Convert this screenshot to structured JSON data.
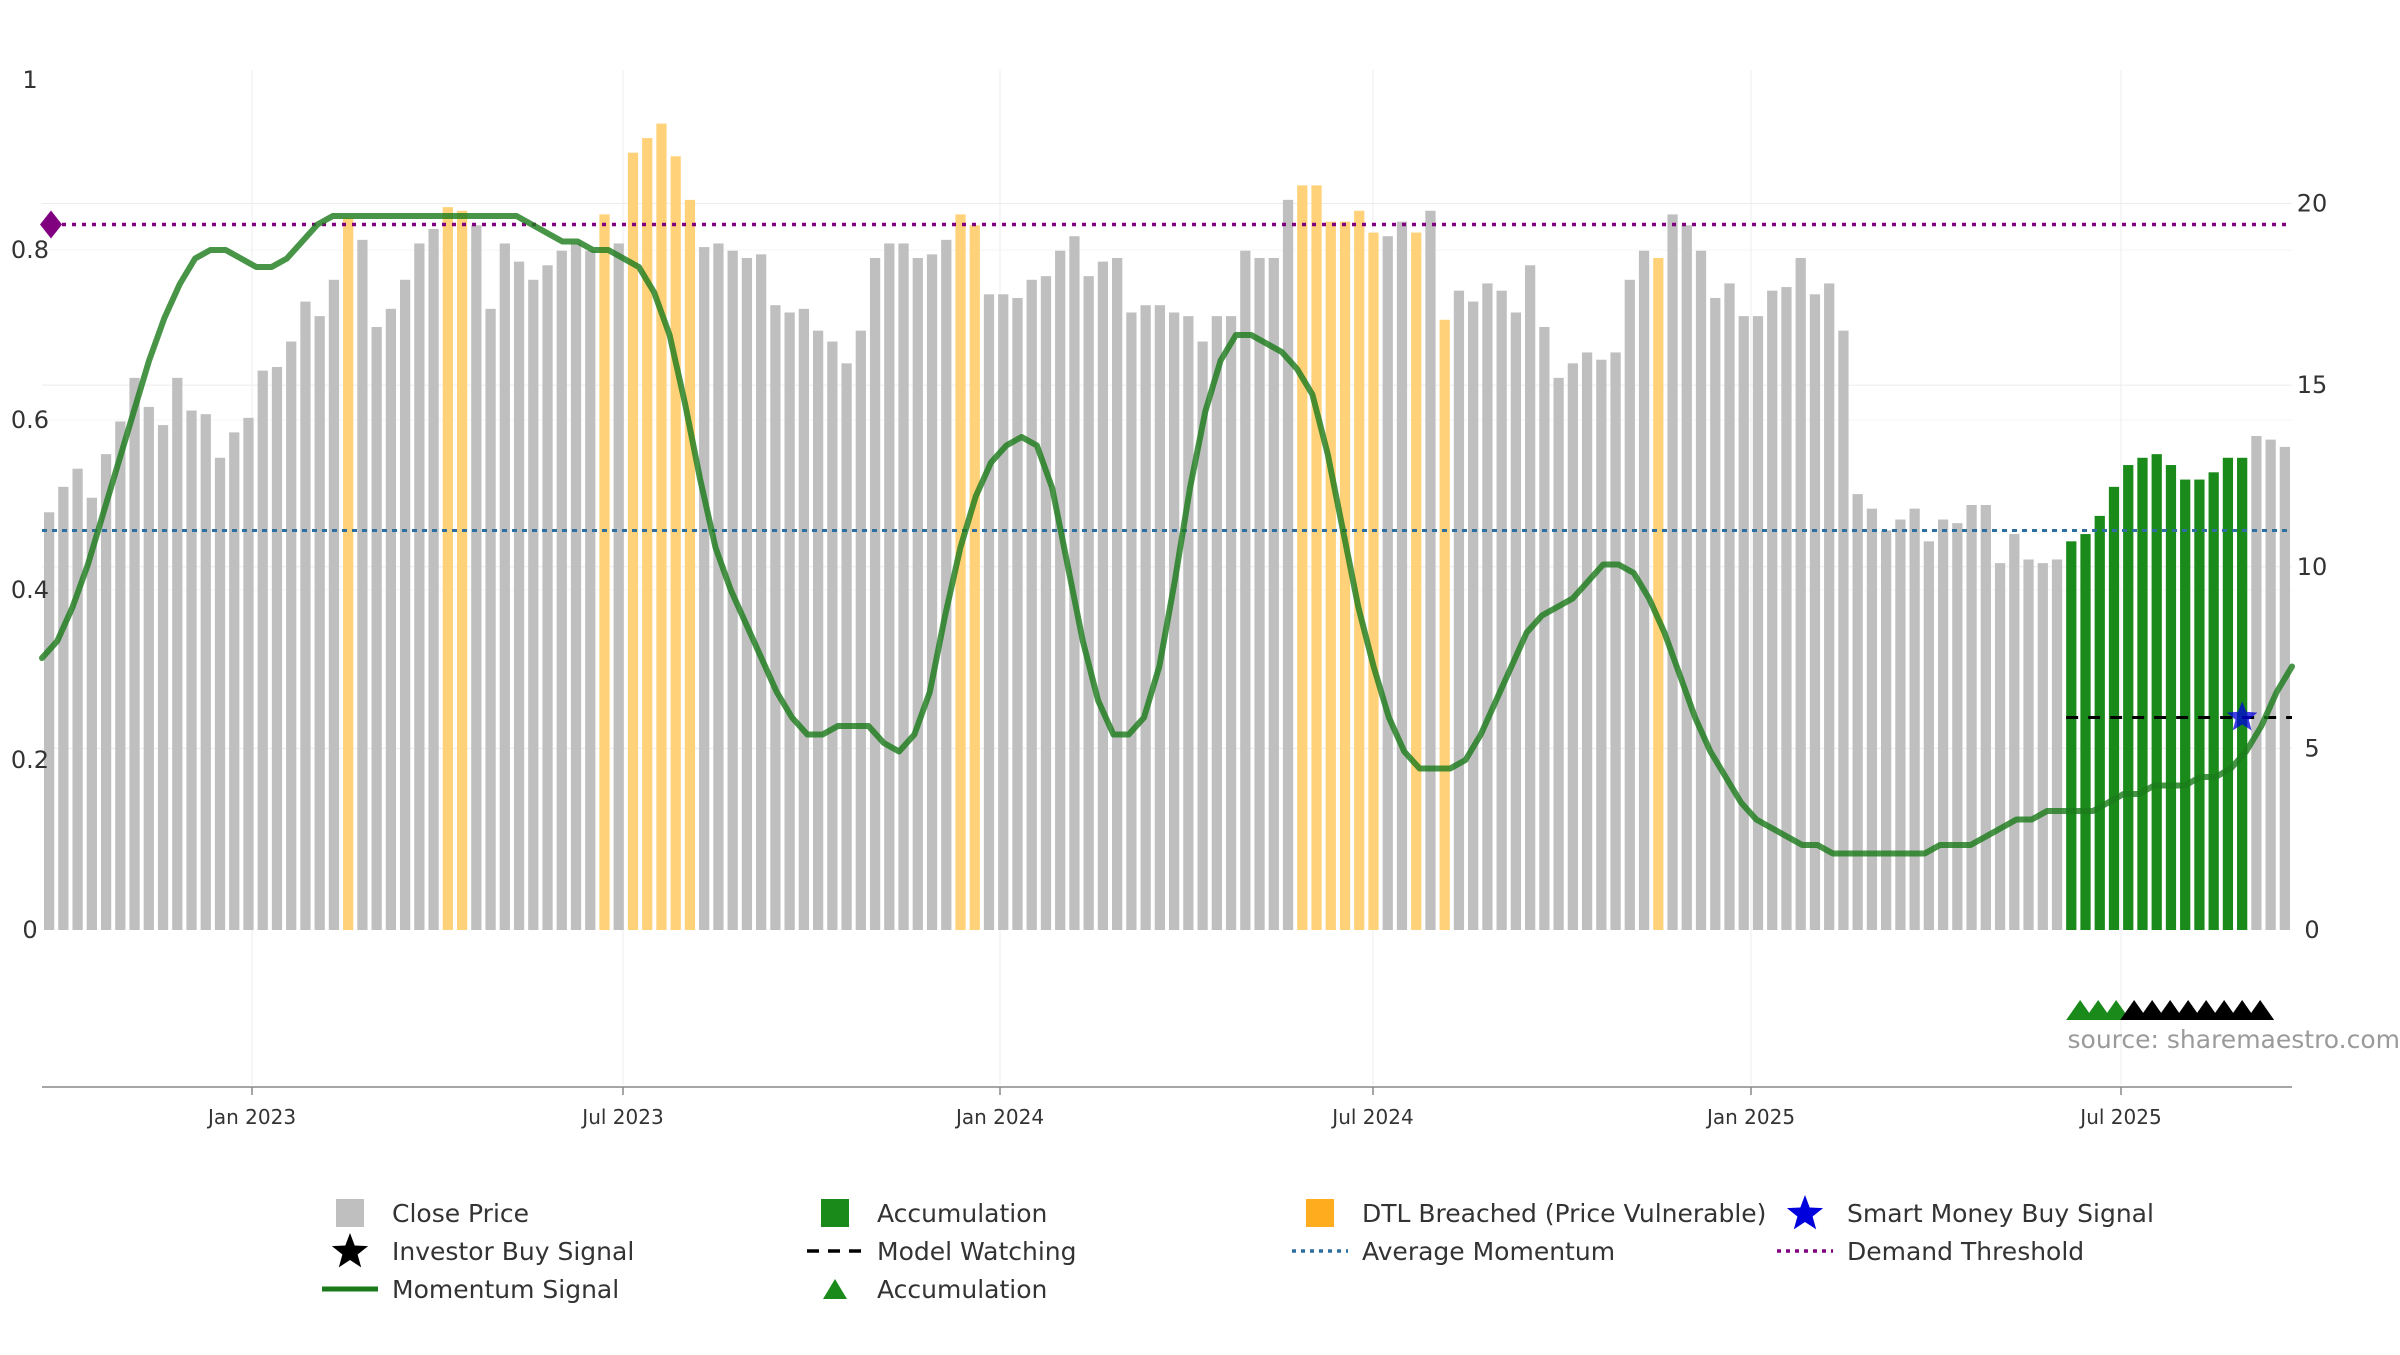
{
  "chart_data": {
    "type": "bar",
    "title": "",
    "xlabel": "",
    "ylabel": "",
    "source_text": "source: sharemaestro.com",
    "x_ticks": [
      "Jan 2023",
      "Jul 2023",
      "Jan 2024",
      "Jul 2024",
      "Jan 2025",
      "Jul 2025"
    ],
    "y_left_ticks": [
      "0",
      "0.2",
      "0.4",
      "0.6",
      "0.8",
      "1"
    ],
    "y_right_ticks": [
      "0",
      "5",
      "10",
      "15",
      "20"
    ],
    "y_left_range": [
      0,
      1
    ],
    "y_right_range": [
      0,
      23.4
    ],
    "bar_series": {
      "name": "Close Price",
      "axis": "right",
      "values": [
        11.5,
        12.2,
        12.7,
        11.9,
        13.1,
        14.0,
        15.2,
        14.4,
        13.9,
        15.2,
        14.3,
        14.2,
        13.0,
        13.7,
        14.1,
        15.4,
        15.5,
        16.2,
        17.3,
        16.9,
        17.9,
        19.6,
        19.0,
        16.6,
        17.1,
        17.9,
        18.9,
        19.3,
        19.9,
        19.8,
        19.4,
        17.1,
        18.9,
        18.4,
        17.9,
        18.3,
        18.7,
        18.9,
        18.7,
        19.7,
        18.9,
        21.4,
        21.8,
        22.2,
        21.3,
        20.1,
        18.8,
        18.9,
        18.7,
        18.5,
        18.6,
        17.2,
        17.0,
        17.1,
        16.5,
        16.2,
        15.6,
        16.5,
        18.5,
        18.9,
        18.9,
        18.5,
        18.6,
        19.0,
        19.7,
        19.4,
        17.5,
        17.5,
        17.4,
        17.9,
        18.0,
        18.7,
        19.1,
        18.0,
        18.4,
        18.5,
        17.0,
        17.2,
        17.2,
        17.0,
        16.9,
        16.2,
        16.9,
        16.9,
        18.7,
        18.5,
        18.5,
        20.1,
        20.5,
        20.5,
        19.5,
        19.5,
        19.8,
        19.2,
        19.1,
        19.5,
        19.2,
        19.8,
        16.8,
        17.6,
        17.3,
        17.8,
        17.6,
        17.0,
        18.3,
        16.6,
        15.2,
        15.6,
        15.9,
        15.7,
        15.9,
        17.9,
        18.7,
        18.5,
        19.7,
        19.4,
        18.7,
        17.4,
        17.8,
        16.9,
        16.9,
        17.6,
        17.7,
        18.5,
        17.5,
        17.8,
        16.5,
        12.0,
        11.6,
        11.0,
        11.3,
        11.6,
        10.7,
        11.3,
        11.2,
        11.7,
        11.7,
        10.1,
        10.9,
        10.2,
        10.1,
        10.2,
        10.7,
        10.9,
        11.4,
        12.2,
        12.8,
        13.0,
        13.1,
        12.8,
        12.4,
        12.4,
        12.6,
        13.0,
        13.0,
        13.6,
        13.5,
        13.3
      ],
      "categories": [
        "Close Price",
        "Accumulation",
        "DTL Breached (Price Vulnerable)"
      ],
      "category_per_bar": "0 except indices 21,28,29,39,41,42,43,44,45,64,65,88,89,90,91,92,93,96,98,113 = 2 and indices 142-154 = 1"
    },
    "momentum_signal": {
      "name": "Momentum Signal",
      "axis": "left",
      "note": "weekly values, left axis 0-1",
      "values": [
        0.32,
        0.34,
        0.38,
        0.43,
        0.49,
        0.55,
        0.61,
        0.67,
        0.72,
        0.76,
        0.79,
        0.8,
        0.8,
        0.79,
        0.78,
        0.78,
        0.79,
        0.81,
        0.83,
        0.84,
        0.84,
        0.84,
        0.84,
        0.84,
        0.84,
        0.84,
        0.84,
        0.84,
        0.84,
        0.84,
        0.84,
        0.84,
        0.83,
        0.82,
        0.81,
        0.81,
        0.8,
        0.8,
        0.79,
        0.78,
        0.75,
        0.7,
        0.62,
        0.53,
        0.45,
        0.4,
        0.36,
        0.32,
        0.28,
        0.25,
        0.23,
        0.23,
        0.24,
        0.24,
        0.24,
        0.22,
        0.21,
        0.23,
        0.28,
        0.37,
        0.45,
        0.51,
        0.55,
        0.57,
        0.58,
        0.57,
        0.52,
        0.43,
        0.34,
        0.27,
        0.23,
        0.23,
        0.25,
        0.31,
        0.41,
        0.52,
        0.61,
        0.67,
        0.7,
        0.7,
        0.69,
        0.68,
        0.66,
        0.63,
        0.56,
        0.47,
        0.38,
        0.31,
        0.25,
        0.21,
        0.19,
        0.19,
        0.19,
        0.2,
        0.23,
        0.27,
        0.31,
        0.35,
        0.37,
        0.38,
        0.39,
        0.41,
        0.43,
        0.43,
        0.42,
        0.39,
        0.35,
        0.3,
        0.25,
        0.21,
        0.18,
        0.15,
        0.13,
        0.12,
        0.11,
        0.1,
        0.1,
        0.09,
        0.09,
        0.09,
        0.09,
        0.09,
        0.09,
        0.09,
        0.1,
        0.1,
        0.1,
        0.11,
        0.12,
        0.13,
        0.13,
        0.14,
        0.14,
        0.14,
        0.14,
        0.15,
        0.16,
        0.16,
        0.17,
        0.17,
        0.17,
        0.18,
        0.18,
        0.19,
        0.21,
        0.24,
        0.28,
        0.31
      ]
    },
    "demand_threshold": {
      "name": "Demand Threshold",
      "axis": "left",
      "value": 0.83
    },
    "average_momentum": {
      "name": "Average Momentum",
      "axis": "left",
      "value": 0.47
    },
    "model_watching": {
      "name": "Model Watching",
      "axis": "left",
      "value": 0.25
    },
    "signals": {
      "smart_money_buy": {
        "name": "Smart Money Buy Signal",
        "bar_index": 154,
        "value": 0.25
      },
      "accumulation_triangles": {
        "name": "Accumulation",
        "count": 3
      },
      "investor_triangles": {
        "count": 8
      }
    },
    "legend": [
      {
        "label": "Close Price",
        "color": "#bfbfbf",
        "kind": "square"
      },
      {
        "label": "Accumulation",
        "color": "#1a8a1a",
        "kind": "square"
      },
      {
        "label": "DTL Breached (Price Vulnerable)",
        "color": "#ffad1f",
        "kind": "square"
      },
      {
        "label": "Smart Money Buy Signal",
        "color": "#0000dd",
        "kind": "star"
      },
      {
        "label": "Investor Buy Signal",
        "color": "#000000",
        "kind": "star"
      },
      {
        "label": "Model Watching",
        "color": "#000000",
        "kind": "dash"
      },
      {
        "label": "Average Momentum",
        "color": "#2f6f9f",
        "kind": "dot"
      },
      {
        "label": "Demand Threshold",
        "color": "#800080",
        "kind": "dot"
      },
      {
        "label": "Momentum Signal",
        "color": "#1a7a1a",
        "kind": "line"
      },
      {
        "label": "Accumulation",
        "color": "#1a8a1a",
        "kind": "triangle"
      }
    ],
    "colors": {
      "close_price": "#bfbfbf",
      "accumulation": "#1a8a1a",
      "dtl": "#ffd27a",
      "momentum": "#1a7a1a",
      "demand": "#800080",
      "average": "#2f6f9f",
      "smart_money": "#0000dd"
    }
  }
}
